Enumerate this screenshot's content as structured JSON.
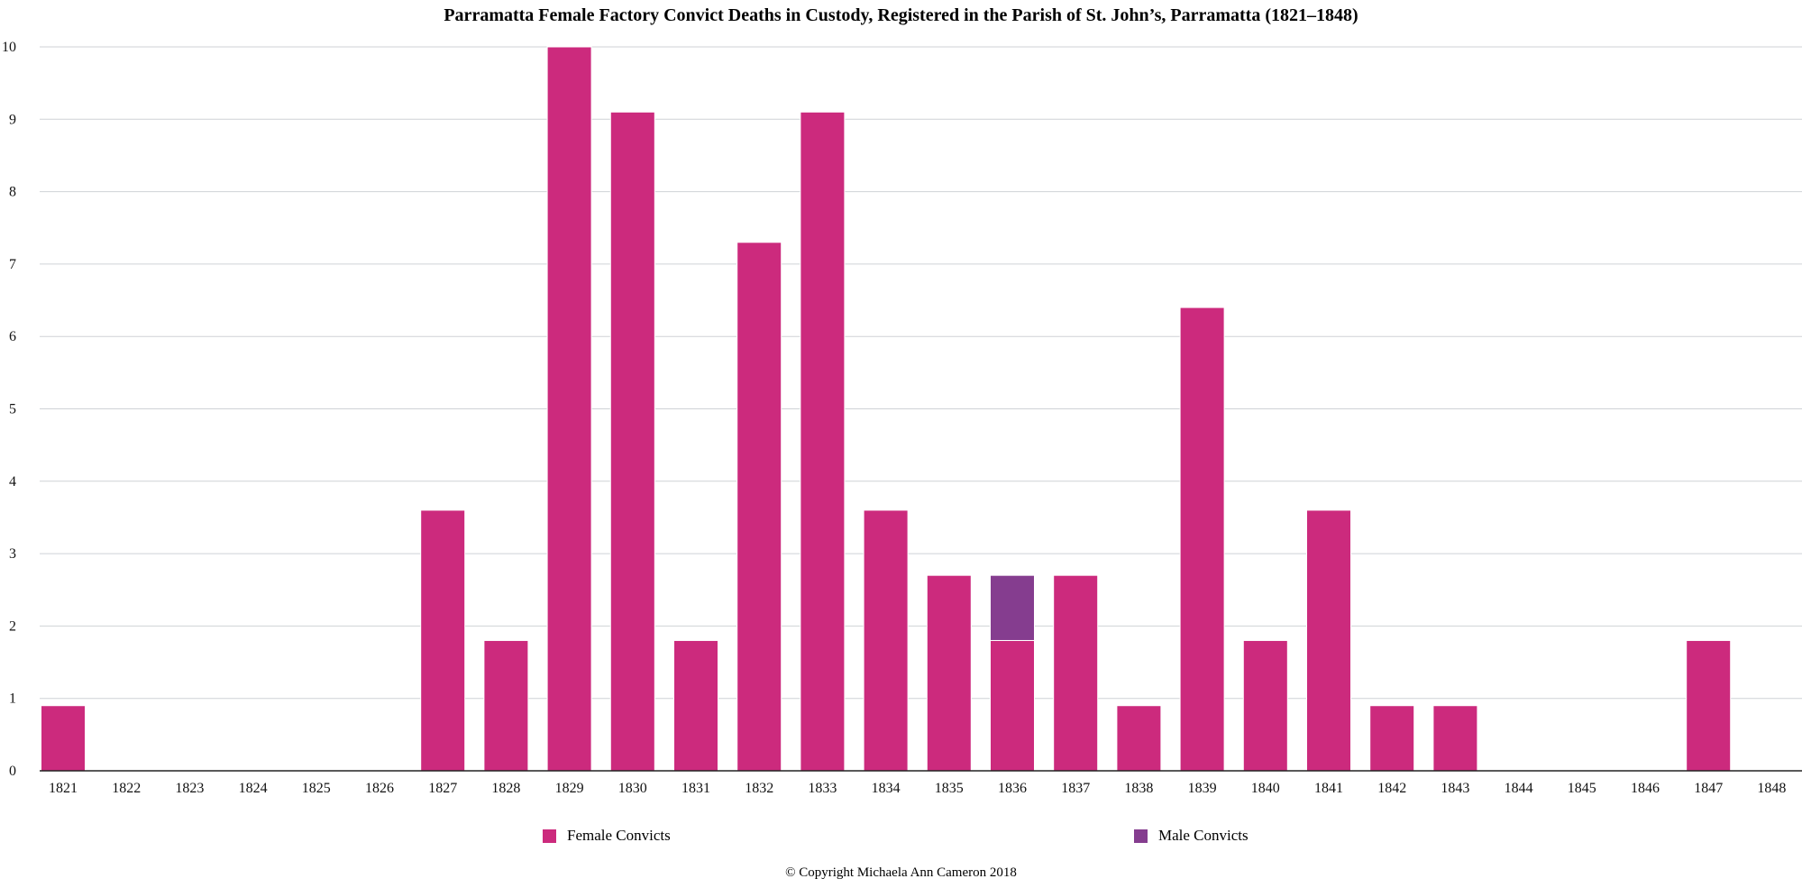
{
  "chart_data": {
    "type": "bar",
    "stacked": true,
    "title": "Parramatta Female Factory Convict Deaths in Custody, Registered in the Parish of St. John’s, Parramatta (1821–1848)",
    "xlabel": "",
    "ylabel": "",
    "categories": [
      "1821",
      "1822",
      "1823",
      "1824",
      "1825",
      "1826",
      "1827",
      "1828",
      "1829",
      "1830",
      "1831",
      "1832",
      "1833",
      "1834",
      "1835",
      "1836",
      "1837",
      "1838",
      "1839",
      "1840",
      "1841",
      "1842",
      "1843",
      "1844",
      "1845",
      "1846",
      "1847",
      "1848"
    ],
    "series": [
      {
        "name": "Female Convicts",
        "color": "#cc2a7d",
        "values": [
          0.9,
          0,
          0,
          0,
          0,
          0,
          3.6,
          1.8,
          10,
          9.1,
          1.8,
          7.3,
          9.1,
          3.6,
          2.7,
          1.8,
          2.7,
          0.9,
          6.4,
          1.8,
          3.6,
          0.9,
          0.9,
          0,
          0,
          0,
          1.8,
          0
        ]
      },
      {
        "name": "Male Convicts",
        "color": "#853d8f",
        "values": [
          0,
          0,
          0,
          0,
          0,
          0,
          0,
          0,
          0,
          0,
          0,
          0,
          0,
          0,
          0,
          0.9,
          0,
          0,
          0,
          0,
          0,
          0,
          0,
          0,
          0,
          0,
          0,
          0
        ]
      }
    ],
    "ylim": [
      0,
      10
    ],
    "yticks": [
      0,
      1,
      2,
      3,
      4,
      5,
      6,
      7,
      8,
      9,
      10
    ],
    "grid": true,
    "legend_position": "bottom"
  },
  "legend": {
    "female_label": "Female Convicts",
    "male_label": "Male Convicts"
  },
  "copyright": "© Copyright Michaela Ann Cameron 2018"
}
